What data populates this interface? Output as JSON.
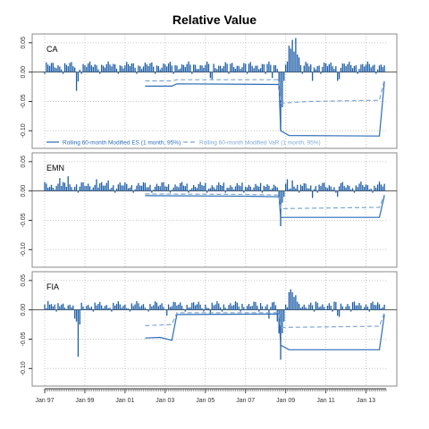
{
  "title": "Relative Value",
  "colors": {
    "bar": "#1F5FA8",
    "es_line": "#2B6CB8",
    "var_line": "#7FA7D4",
    "axis": "#333333",
    "grid": "#c8c8c8"
  },
  "legend": {
    "es_label": "Rolling 60-month Modified ES (1 month, 95%)",
    "var_label": "Rolling 60-month Modified VaR (1 month, 95%)"
  },
  "chart_data": {
    "type": "bar",
    "title": "Relative Value",
    "x_start": "1997-01",
    "x_end": "2014-01",
    "x_tick_labels": [
      "Jan 97",
      "Jan 99",
      "Jan 01",
      "Jan 03",
      "Jan 05",
      "Jan 07",
      "Jan 09",
      "Jan 11",
      "Jan 13"
    ],
    "ylim": [
      -0.13,
      0.065
    ],
    "y_ticks": [
      0.05,
      0.0,
      -0.05,
      -0.1
    ],
    "y_tick_labels": [
      "0.05",
      "0.00",
      "-0.05",
      "-0.10"
    ],
    "grid": true,
    "legend_placement": "bottom of first panel",
    "panels": [
      {
        "name": "CA",
        "returns": {
          "base": 0.011,
          "amp": 0.004,
          "events": [
            {
              "date": "1998-08",
              "value": -0.032
            },
            {
              "date": "1998-09",
              "value": -0.016
            },
            {
              "date": "2005-04",
              "value": -0.01
            },
            {
              "date": "2005-05",
              "value": -0.012
            },
            {
              "date": "2008-05",
              "value": -0.01
            },
            {
              "date": "2008-09",
              "value": -0.03
            },
            {
              "date": "2008-10",
              "value": -0.1
            },
            {
              "date": "2008-11",
              "value": -0.06
            },
            {
              "date": "2008-12",
              "value": -0.015
            },
            {
              "date": "2009-03",
              "value": 0.045
            },
            {
              "date": "2009-04",
              "value": 0.04
            },
            {
              "date": "2009-05",
              "value": 0.055
            },
            {
              "date": "2009-06",
              "value": 0.035
            },
            {
              "date": "2009-07",
              "value": 0.058
            },
            {
              "date": "2009-08",
              "value": 0.03
            },
            {
              "date": "2009-09",
              "value": 0.025
            },
            {
              "date": "2010-05",
              "value": -0.015
            },
            {
              "date": "2011-08",
              "value": -0.015
            },
            {
              "date": "2011-09",
              "value": -0.012
            }
          ]
        },
        "es": [
          {
            "date": "2002-01",
            "value": -0.024
          },
          {
            "date": "2003-05",
            "value": -0.024
          },
          {
            "date": "2003-08",
            "value": -0.02
          },
          {
            "date": "2008-09",
            "value": -0.021
          },
          {
            "date": "2008-10",
            "value": -0.1
          },
          {
            "date": "2009-03",
            "value": -0.108
          },
          {
            "date": "2013-09",
            "value": -0.109
          },
          {
            "date": "2013-12",
            "value": -0.016
          }
        ],
        "var": [
          {
            "date": "2002-01",
            "value": -0.015
          },
          {
            "date": "2003-05",
            "value": -0.015
          },
          {
            "date": "2003-08",
            "value": -0.013
          },
          {
            "date": "2008-09",
            "value": -0.013
          },
          {
            "date": "2008-10",
            "value": -0.053
          },
          {
            "date": "2010-03",
            "value": -0.05
          },
          {
            "date": "2013-09",
            "value": -0.048
          },
          {
            "date": "2013-12",
            "value": -0.013
          }
        ]
      },
      {
        "name": "EMN",
        "returns": {
          "base": 0.009,
          "amp": 0.004,
          "events": [
            {
              "date": "1997-10",
              "value": 0.022
            },
            {
              "date": "1998-03",
              "value": 0.025
            },
            {
              "date": "1999-08",
              "value": 0.02
            },
            {
              "date": "2000-03",
              "value": 0.018
            },
            {
              "date": "2008-09",
              "value": -0.012
            },
            {
              "date": "2008-10",
              "value": -0.06
            },
            {
              "date": "2008-11",
              "value": -0.02
            },
            {
              "date": "2008-12",
              "value": -0.01
            },
            {
              "date": "2009-02",
              "value": 0.02
            },
            {
              "date": "2009-05",
              "value": 0.018
            },
            {
              "date": "2010-05",
              "value": -0.012
            },
            {
              "date": "2011-08",
              "value": -0.01
            }
          ]
        },
        "es": [
          {
            "date": "2002-01",
            "value": -0.008
          },
          {
            "date": "2007-06",
            "value": -0.009
          },
          {
            "date": "2008-09",
            "value": -0.01
          },
          {
            "date": "2008-10",
            "value": -0.045
          },
          {
            "date": "2013-09",
            "value": -0.045
          },
          {
            "date": "2013-12",
            "value": -0.008
          }
        ],
        "var": [
          {
            "date": "2002-01",
            "value": -0.005
          },
          {
            "date": "2007-06",
            "value": -0.006
          },
          {
            "date": "2008-09",
            "value": -0.007
          },
          {
            "date": "2008-10",
            "value": -0.03
          },
          {
            "date": "2013-09",
            "value": -0.028
          },
          {
            "date": "2013-12",
            "value": -0.006
          }
        ]
      },
      {
        "name": "FIA",
        "returns": {
          "base": 0.008,
          "amp": 0.004,
          "events": [
            {
              "date": "1997-03",
              "value": 0.015
            },
            {
              "date": "1998-07",
              "value": -0.015
            },
            {
              "date": "1998-08",
              "value": -0.02
            },
            {
              "date": "1998-09",
              "value": -0.08
            },
            {
              "date": "1998-10",
              "value": -0.025
            },
            {
              "date": "2003-02",
              "value": -0.01
            },
            {
              "date": "2005-04",
              "value": -0.008
            },
            {
              "date": "2008-03",
              "value": -0.015
            },
            {
              "date": "2008-08",
              "value": -0.02
            },
            {
              "date": "2008-09",
              "value": -0.04
            },
            {
              "date": "2008-10",
              "value": -0.085
            },
            {
              "date": "2008-11",
              "value": -0.04
            },
            {
              "date": "2008-12",
              "value": -0.02
            },
            {
              "date": "2009-03",
              "value": 0.03
            },
            {
              "date": "2009-04",
              "value": 0.035
            },
            {
              "date": "2009-05",
              "value": 0.03
            },
            {
              "date": "2009-06",
              "value": 0.022
            },
            {
              "date": "2009-07",
              "value": 0.025
            },
            {
              "date": "2011-08",
              "value": -0.01
            },
            {
              "date": "2011-09",
              "value": -0.012
            }
          ]
        },
        "es": [
          {
            "date": "2002-01",
            "value": -0.048
          },
          {
            "date": "2002-10",
            "value": -0.047
          },
          {
            "date": "2003-05",
            "value": -0.052
          },
          {
            "date": "2003-08",
            "value": -0.008
          },
          {
            "date": "2008-09",
            "value": -0.007
          },
          {
            "date": "2008-10",
            "value": -0.06
          },
          {
            "date": "2009-03",
            "value": -0.068
          },
          {
            "date": "2013-09",
            "value": -0.068
          },
          {
            "date": "2013-12",
            "value": -0.008
          }
        ],
        "var": [
          {
            "date": "2002-01",
            "value": -0.027
          },
          {
            "date": "2003-05",
            "value": -0.025
          },
          {
            "date": "2003-08",
            "value": -0.005
          },
          {
            "date": "2008-09",
            "value": -0.005
          },
          {
            "date": "2008-10",
            "value": -0.03
          },
          {
            "date": "2013-09",
            "value": -0.028
          },
          {
            "date": "2013-12",
            "value": -0.005
          }
        ]
      }
    ]
  }
}
